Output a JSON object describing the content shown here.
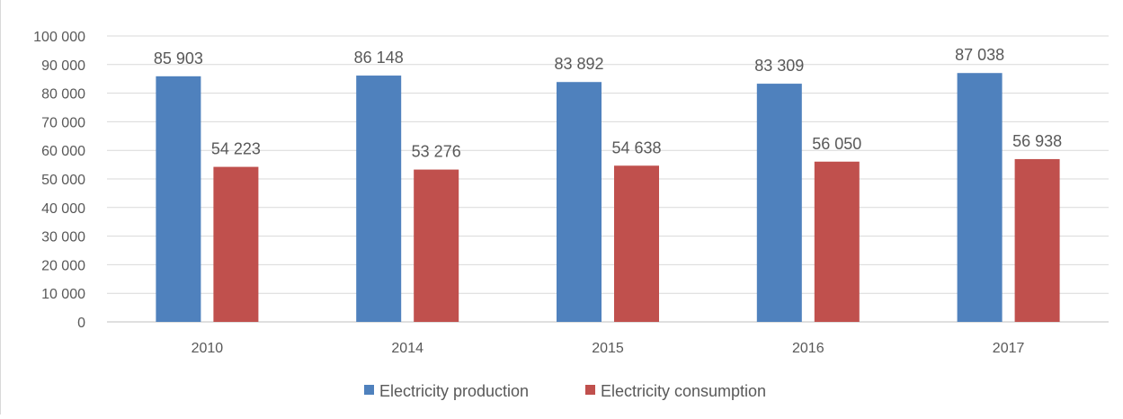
{
  "chart_data": {
    "type": "bar",
    "categories": [
      "2010",
      "2014",
      "2015",
      "2016",
      "2017"
    ],
    "series": [
      {
        "name": "Electricity production",
        "values": [
          85903,
          86148,
          83892,
          83309,
          87038
        ],
        "labels": [
          "85 903",
          "86 148",
          "83 892",
          "83 309",
          "87 038"
        ]
      },
      {
        "name": "Electricity consumption",
        "values": [
          54223,
          53276,
          54638,
          56050,
          56938
        ],
        "labels": [
          "54 223",
          "53 276",
          "54 638",
          "56 050",
          "56 938"
        ]
      }
    ],
    "ylim": [
      0,
      100000
    ],
    "y_ticks": [
      0,
      10000,
      20000,
      30000,
      40000,
      50000,
      60000,
      70000,
      80000,
      90000,
      100000
    ],
    "y_tick_labels": [
      "0",
      "10 000",
      "20 000",
      "30 000",
      "40 000",
      "50 000",
      "60 000",
      "70 000",
      "80 000",
      "90 000",
      "100 000"
    ],
    "grid": true,
    "legend_position": "bottom",
    "colors": [
      "#4f81bd",
      "#c0504d"
    ]
  }
}
